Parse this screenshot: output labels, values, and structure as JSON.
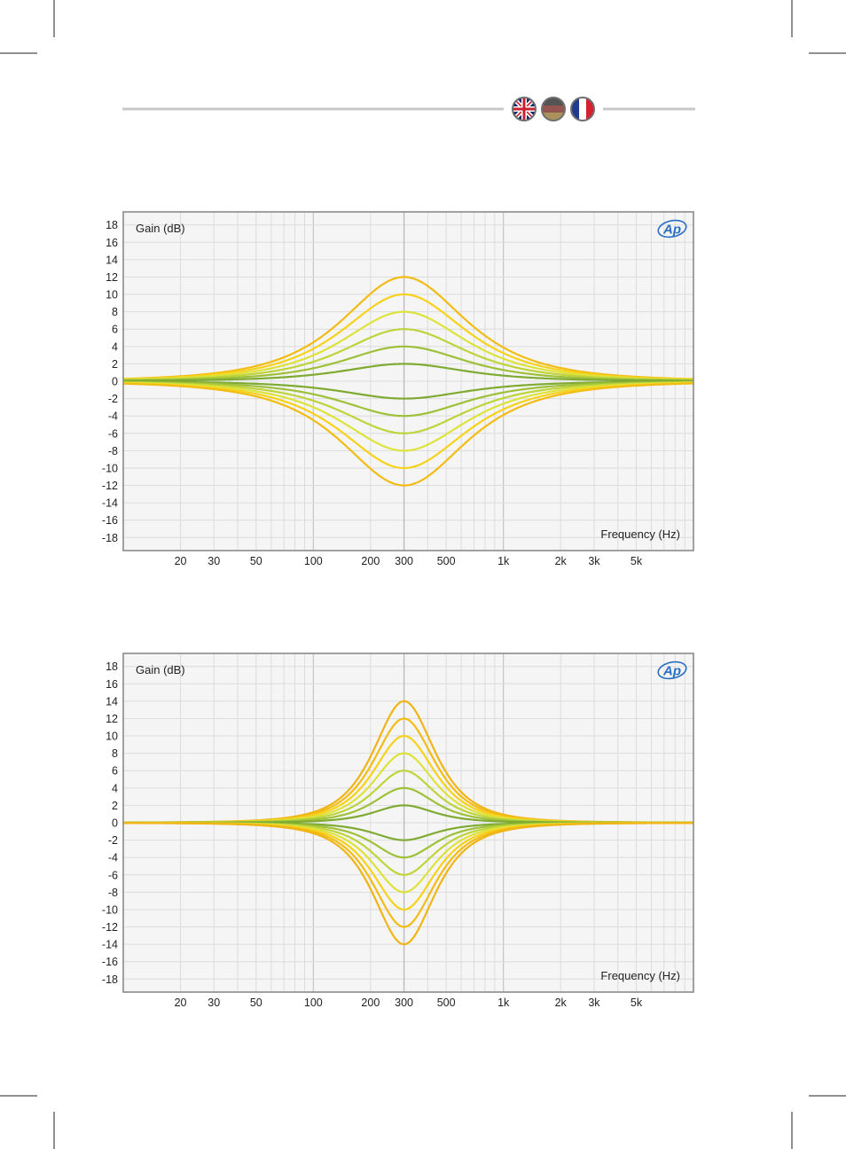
{
  "header": {
    "languages": [
      {
        "name": "english",
        "icon": "uk-flag-icon",
        "colors": [
          "#0b2a6e",
          "#ffffff",
          "#cc1f2f"
        ]
      },
      {
        "name": "german",
        "icon": "german-flag-icon",
        "colors": [
          "#2b2b2b",
          "#b82a25",
          "#e8b63a"
        ]
      },
      {
        "name": "french",
        "icon": "french-flag-icon",
        "colors": [
          "#1e3b8f",
          "#ffffff",
          "#d7202e"
        ]
      }
    ],
    "rule_color": "#c8c8c8"
  },
  "logo": "Ap",
  "chart_data": [
    {
      "type": "line",
      "ylabel": "Gain (dB)",
      "xlabel": "Frequency (Hz)",
      "xscale": "log",
      "xlim": [
        10,
        10000
      ],
      "ylim": [
        -19.5,
        19.5
      ],
      "yticks": [
        18,
        16,
        14,
        12,
        10,
        8,
        6,
        4,
        2,
        0,
        -2,
        -4,
        -6,
        -8,
        -10,
        -12,
        -14,
        -16,
        -18
      ],
      "ytick_labels": [
        "18",
        "16",
        "14",
        "12",
        "10",
        "8",
        "6",
        "4",
        "2",
        "0",
        "-2",
        "-4",
        "-6",
        "-8",
        "-10",
        "-12",
        "-14",
        "-16",
        "-18"
      ],
      "xticks": [
        20,
        30,
        50,
        100,
        200,
        300,
        500,
        1000,
        2000,
        3000,
        5000
      ],
      "xtick_labels": [
        "20",
        "30",
        "50",
        "100",
        "200",
        "300",
        "500",
        "1k",
        "2k",
        "3k",
        "5k"
      ],
      "grid": true,
      "center_frequency": 300,
      "series": [
        {
          "peak_gain": 12,
          "color": "#f2bc14"
        },
        {
          "peak_gain": 10,
          "color": "#f7d21a"
        },
        {
          "peak_gain": 8,
          "color": "#dde33a"
        },
        {
          "peak_gain": 6,
          "color": "#bfd43a"
        },
        {
          "peak_gain": 4,
          "color": "#9fc13a"
        },
        {
          "peak_gain": 2,
          "color": "#7fab32"
        },
        {
          "peak_gain": -2,
          "color": "#7fab32"
        },
        {
          "peak_gain": -4,
          "color": "#9fc13a"
        },
        {
          "peak_gain": -6,
          "color": "#bfd43a"
        },
        {
          "peak_gain": -8,
          "color": "#dde33a"
        },
        {
          "peak_gain": -10,
          "color": "#f7d21a"
        },
        {
          "peak_gain": -12,
          "color": "#f2bc14"
        }
      ]
    },
    {
      "type": "line",
      "ylabel": "Gain (dB)",
      "xlabel": "Frequency (Hz)",
      "xscale": "log",
      "xlim": [
        10,
        10000
      ],
      "ylim": [
        -19.5,
        19.5
      ],
      "yticks": [
        18,
        16,
        14,
        12,
        10,
        8,
        6,
        4,
        2,
        0,
        -2,
        -4,
        -6,
        -8,
        -10,
        -12,
        -14,
        -16,
        -18
      ],
      "ytick_labels": [
        "18",
        "16",
        "14",
        "12",
        "10",
        "8",
        "6",
        "4",
        "2",
        "0",
        "-2",
        "-4",
        "-6",
        "-8",
        "-10",
        "-12",
        "-14",
        "-16",
        "-18"
      ],
      "xticks": [
        20,
        30,
        50,
        100,
        200,
        300,
        500,
        1000,
        2000,
        3000,
        5000
      ],
      "xtick_labels": [
        "20",
        "30",
        "50",
        "100",
        "200",
        "300",
        "500",
        "1k",
        "2k",
        "3k",
        "5k"
      ],
      "grid": true,
      "center_frequency": 300,
      "series": [
        {
          "peak_gain": 14,
          "color": "#f0b414"
        },
        {
          "peak_gain": 12,
          "color": "#f2bc14"
        },
        {
          "peak_gain": 10,
          "color": "#f7d21a"
        },
        {
          "peak_gain": 8,
          "color": "#dde33a"
        },
        {
          "peak_gain": 6,
          "color": "#bfd43a"
        },
        {
          "peak_gain": 4,
          "color": "#9fc13a"
        },
        {
          "peak_gain": 2,
          "color": "#7fab32"
        },
        {
          "peak_gain": -2,
          "color": "#7fab32"
        },
        {
          "peak_gain": -4,
          "color": "#9fc13a"
        },
        {
          "peak_gain": -6,
          "color": "#bfd43a"
        },
        {
          "peak_gain": -8,
          "color": "#dde33a"
        },
        {
          "peak_gain": -10,
          "color": "#f7d21a"
        },
        {
          "peak_gain": -12,
          "color": "#f2bc14"
        },
        {
          "peak_gain": -14,
          "color": "#f0b414"
        }
      ]
    }
  ]
}
